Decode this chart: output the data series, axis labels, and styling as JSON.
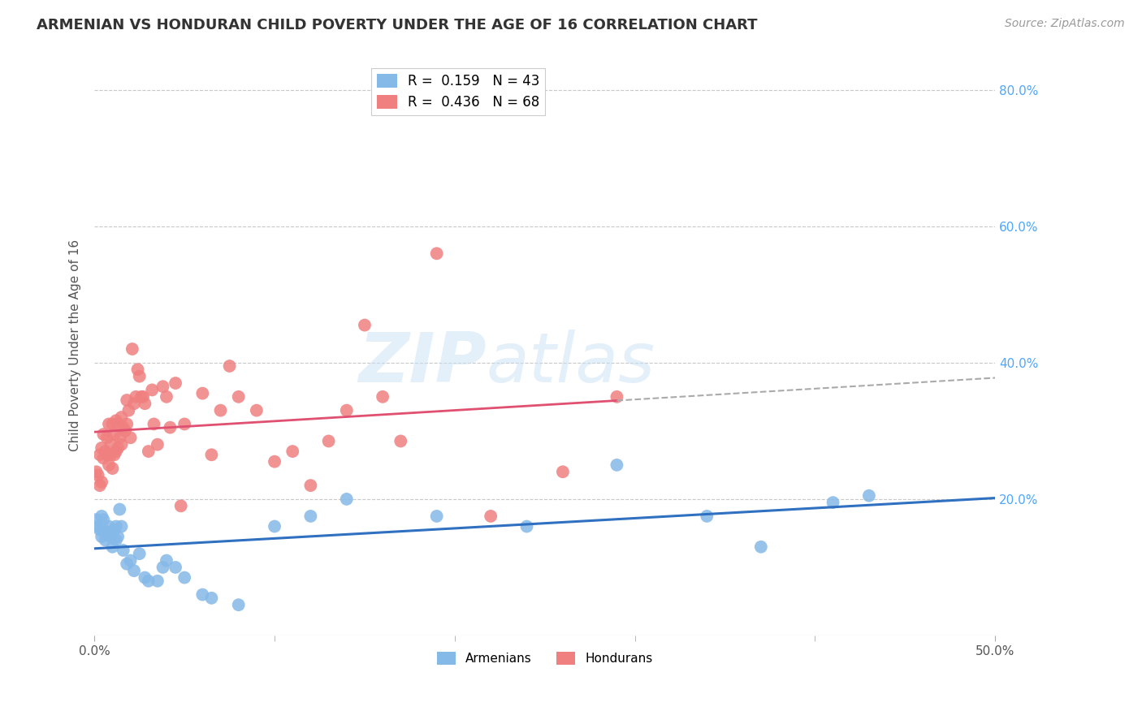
{
  "title": "ARMENIAN VS HONDURAN CHILD POVERTY UNDER THE AGE OF 16 CORRELATION CHART",
  "source": "Source: ZipAtlas.com",
  "ylabel": "Child Poverty Under the Age of 16",
  "xlim": [
    0.0,
    0.5
  ],
  "ylim": [
    0.0,
    0.85
  ],
  "background_color": "#ffffff",
  "grid_color": "#c8c8c8",
  "armenian_color": "#85b9e8",
  "honduran_color": "#f08080",
  "armenian_line_color": "#3070c0",
  "honduran_line_color": "#e05070",
  "armenian_R": 0.159,
  "armenian_N": 43,
  "honduran_R": 0.436,
  "honduran_N": 68,
  "armenian_x": [
    0.001,
    0.002,
    0.003,
    0.004,
    0.004,
    0.005,
    0.005,
    0.006,
    0.007,
    0.008,
    0.009,
    0.01,
    0.011,
    0.012,
    0.012,
    0.013,
    0.014,
    0.015,
    0.016,
    0.018,
    0.02,
    0.022,
    0.025,
    0.028,
    0.03,
    0.035,
    0.038,
    0.04,
    0.045,
    0.05,
    0.06,
    0.065,
    0.08,
    0.1,
    0.12,
    0.14,
    0.19,
    0.24,
    0.29,
    0.34,
    0.37,
    0.41,
    0.43
  ],
  "armenian_y": [
    0.17,
    0.16,
    0.155,
    0.175,
    0.145,
    0.155,
    0.17,
    0.14,
    0.15,
    0.16,
    0.145,
    0.13,
    0.155,
    0.14,
    0.16,
    0.145,
    0.185,
    0.16,
    0.125,
    0.105,
    0.11,
    0.095,
    0.12,
    0.085,
    0.08,
    0.08,
    0.1,
    0.11,
    0.1,
    0.085,
    0.06,
    0.055,
    0.045,
    0.16,
    0.175,
    0.2,
    0.175,
    0.16,
    0.25,
    0.175,
    0.13,
    0.195,
    0.205
  ],
  "honduran_x": [
    0.001,
    0.002,
    0.003,
    0.003,
    0.004,
    0.004,
    0.005,
    0.005,
    0.006,
    0.007,
    0.007,
    0.008,
    0.008,
    0.009,
    0.009,
    0.01,
    0.01,
    0.011,
    0.011,
    0.012,
    0.012,
    0.013,
    0.013,
    0.014,
    0.015,
    0.015,
    0.016,
    0.017,
    0.018,
    0.018,
    0.019,
    0.02,
    0.021,
    0.022,
    0.023,
    0.024,
    0.025,
    0.026,
    0.027,
    0.028,
    0.03,
    0.032,
    0.033,
    0.035,
    0.038,
    0.04,
    0.042,
    0.045,
    0.048,
    0.05,
    0.06,
    0.065,
    0.07,
    0.075,
    0.08,
    0.09,
    0.1,
    0.11,
    0.12,
    0.13,
    0.14,
    0.15,
    0.16,
    0.17,
    0.19,
    0.22,
    0.26,
    0.29
  ],
  "honduran_y": [
    0.24,
    0.235,
    0.22,
    0.265,
    0.225,
    0.275,
    0.26,
    0.295,
    0.27,
    0.265,
    0.29,
    0.25,
    0.31,
    0.265,
    0.28,
    0.245,
    0.31,
    0.265,
    0.295,
    0.27,
    0.315,
    0.275,
    0.31,
    0.29,
    0.28,
    0.32,
    0.305,
    0.3,
    0.31,
    0.345,
    0.33,
    0.29,
    0.42,
    0.34,
    0.35,
    0.39,
    0.38,
    0.35,
    0.35,
    0.34,
    0.27,
    0.36,
    0.31,
    0.28,
    0.365,
    0.35,
    0.305,
    0.37,
    0.19,
    0.31,
    0.355,
    0.265,
    0.33,
    0.395,
    0.35,
    0.33,
    0.255,
    0.27,
    0.22,
    0.285,
    0.33,
    0.455,
    0.35,
    0.285,
    0.56,
    0.175,
    0.24,
    0.35
  ],
  "watermark_zip": "ZIP",
  "watermark_atlas": "atlas",
  "watermark_color": "#c8e0f5",
  "watermark_alpha": 0.5
}
